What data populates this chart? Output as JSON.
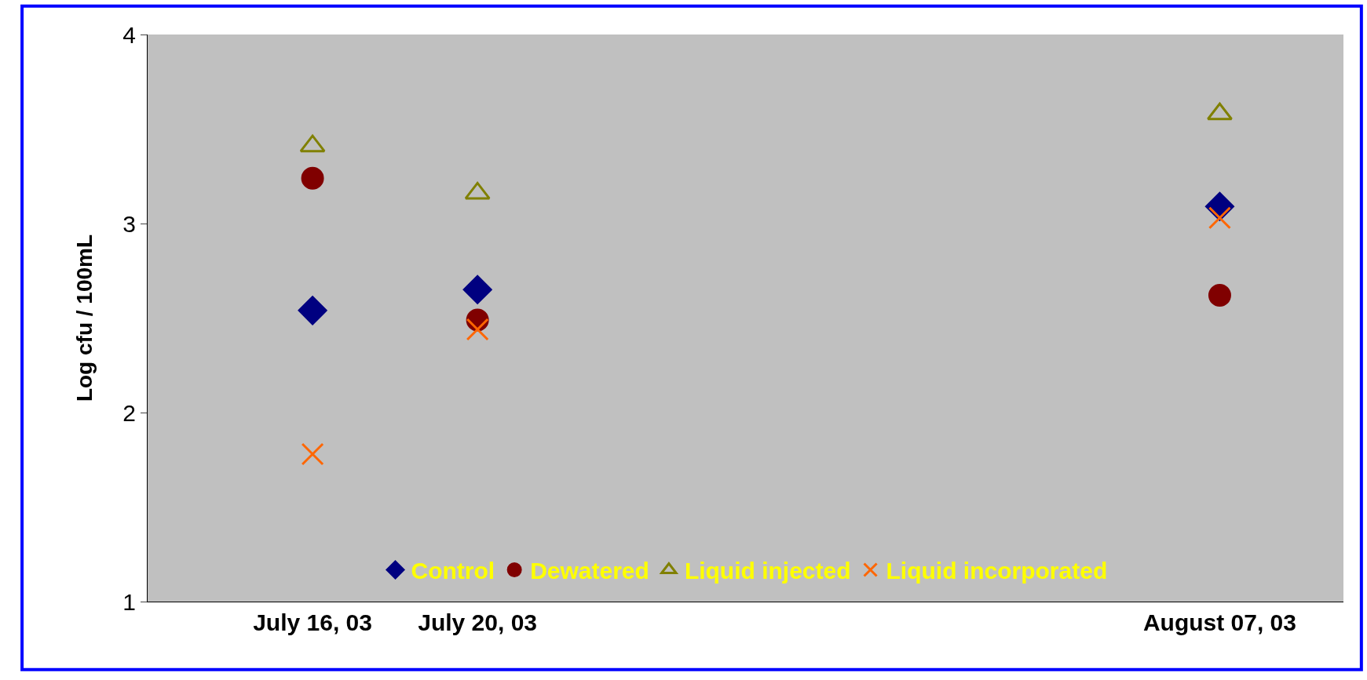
{
  "chart_data": {
    "type": "scatter",
    "ylabel": "Log cfu / 100mL",
    "x": [
      "2003-07-16",
      "2003-07-20",
      "2003-08-07"
    ],
    "xlim": [
      "2003-07-12",
      "2003-08-10"
    ],
    "xticks": [
      {
        "value": "2003-07-16",
        "label": "July 16, 03"
      },
      {
        "value": "2003-07-20",
        "label": "July 20, 03"
      },
      {
        "value": "2003-08-07",
        "label": "August 07, 03"
      }
    ],
    "ylim": [
      1,
      4
    ],
    "yticks": [
      1,
      2,
      3,
      4
    ],
    "grid": false,
    "legend": "bottom",
    "series": [
      {
        "name": "Control",
        "color": "#000080",
        "marker": "diamond",
        "values": [
          2.54,
          2.65,
          3.09
        ]
      },
      {
        "name": "Dewatered",
        "color": "#800000",
        "marker": "circle",
        "values": [
          3.24,
          2.49,
          2.62
        ]
      },
      {
        "name": "Liquid injected",
        "color": "#808000",
        "marker": "triangle",
        "values": [
          3.41,
          3.16,
          3.58
        ]
      },
      {
        "name": "Liquid incorporated",
        "color": "#ff6600",
        "marker": "cross",
        "values": [
          1.78,
          2.44,
          3.03
        ]
      }
    ]
  }
}
